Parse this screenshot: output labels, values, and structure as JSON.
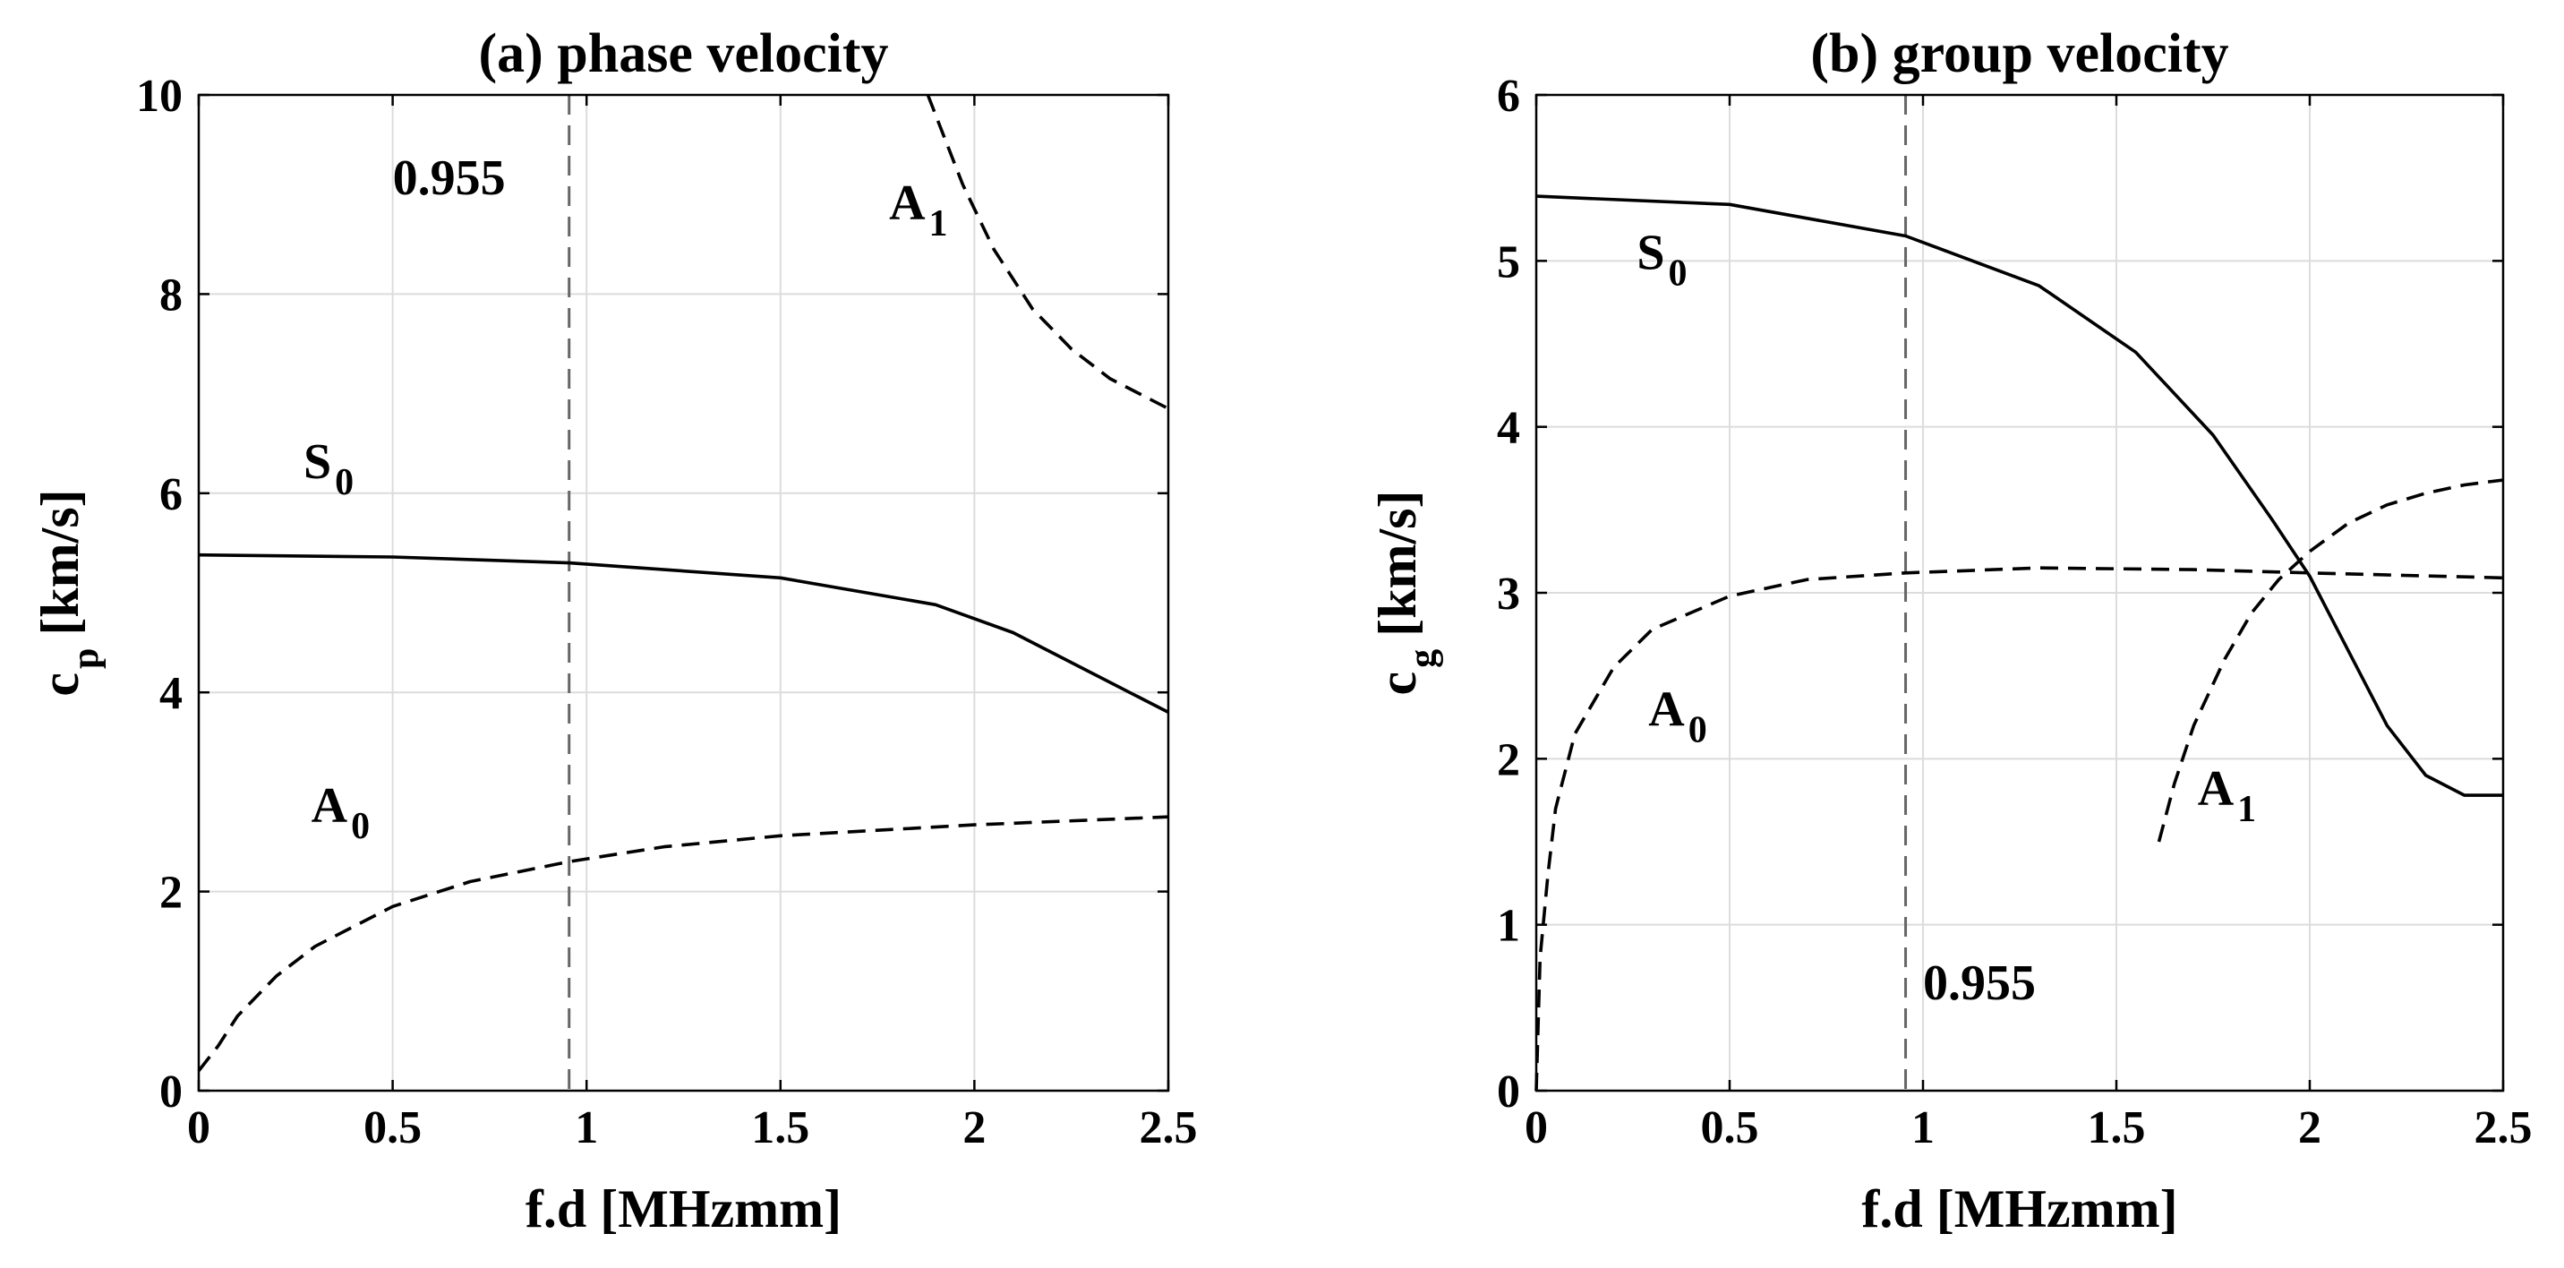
{
  "chart_data": [
    {
      "type": "line",
      "title": "(a) phase velocity",
      "xlabel": "f.d [MHzmm]",
      "ylabel": "c",
      "ylabel_sub": "p",
      "ylabel_unit": "[km/s]",
      "xlim": [
        0,
        2.5
      ],
      "ylim": [
        0,
        10
      ],
      "xticks": [
        0,
        0.5,
        1,
        1.5,
        2,
        2.5
      ],
      "xtick_labels": [
        "0",
        "0.5",
        "1",
        "1.5",
        "2",
        "2.5"
      ],
      "yticks": [
        0,
        2,
        4,
        6,
        8,
        10
      ],
      "ytick_labels": [
        "0",
        "2",
        "4",
        "6",
        "8",
        "10"
      ],
      "grid": true,
      "vline": {
        "x": 0.955,
        "label": "0.955",
        "label_pos": [
          0.5,
          9.0
        ]
      },
      "series": [
        {
          "name": "S0",
          "style": "solid",
          "x": [
            0,
            0.5,
            0.955,
            1.5,
            1.9,
            2.1,
            2.3,
            2.5
          ],
          "y": [
            5.38,
            5.36,
            5.3,
            5.15,
            4.88,
            4.6,
            4.2,
            3.8
          ]
        },
        {
          "name": "A0",
          "style": "dashed",
          "x": [
            0,
            0.05,
            0.1,
            0.2,
            0.3,
            0.5,
            0.7,
            0.955,
            1.2,
            1.5,
            2.0,
            2.5
          ],
          "y": [
            0.2,
            0.45,
            0.75,
            1.15,
            1.45,
            1.85,
            2.1,
            2.3,
            2.45,
            2.56,
            2.67,
            2.75
          ]
        },
        {
          "name": "A1",
          "style": "dashed",
          "x": [
            1.88,
            1.92,
            1.97,
            2.05,
            2.15,
            2.25,
            2.35,
            2.5
          ],
          "y": [
            10.0,
            9.6,
            9.1,
            8.45,
            7.85,
            7.45,
            7.15,
            6.85
          ]
        }
      ],
      "annotations": [
        {
          "text": "S",
          "sub": "0",
          "x": 0.27,
          "y": 6.15
        },
        {
          "text": "A",
          "sub": "0",
          "x": 0.29,
          "y": 2.7
        },
        {
          "text": "A",
          "sub": "1",
          "x": 1.78,
          "y": 8.75
        }
      ]
    },
    {
      "type": "line",
      "title": "(b) group velocity",
      "xlabel": "f.d [MHzmm]",
      "ylabel": "c",
      "ylabel_sub": "g",
      "ylabel_unit": "[km/s]",
      "xlim": [
        0,
        2.5
      ],
      "ylim": [
        0,
        6
      ],
      "xticks": [
        0,
        0.5,
        1,
        1.5,
        2,
        2.5
      ],
      "xtick_labels": [
        "0",
        "0.5",
        "1",
        "1.5",
        "2",
        "2.5"
      ],
      "yticks": [
        0,
        1,
        2,
        3,
        4,
        5,
        6
      ],
      "ytick_labels": [
        "0",
        "1",
        "2",
        "3",
        "4",
        "5",
        "6"
      ],
      "grid": true,
      "vline": {
        "x": 0.955,
        "label": "0.955",
        "label_pos": [
          1.0,
          0.55
        ]
      },
      "series": [
        {
          "name": "S0",
          "style": "solid",
          "x": [
            0,
            0.5,
            0.955,
            1.3,
            1.55,
            1.75,
            1.9,
            2.0,
            2.1,
            2.2,
            2.3,
            2.4,
            2.5
          ],
          "y": [
            5.39,
            5.34,
            5.15,
            4.85,
            4.45,
            3.95,
            3.45,
            3.1,
            2.65,
            2.2,
            1.9,
            1.78,
            1.78
          ]
        },
        {
          "name": "A0",
          "style": "dashed",
          "x": [
            0,
            0.01,
            0.03,
            0.05,
            0.1,
            0.2,
            0.3,
            0.5,
            0.7,
            0.955,
            1.3,
            1.7,
            2.0,
            2.5
          ],
          "y": [
            0.0,
            0.8,
            1.3,
            1.7,
            2.15,
            2.55,
            2.78,
            2.98,
            3.08,
            3.12,
            3.15,
            3.14,
            3.12,
            3.09
          ]
        },
        {
          "name": "A1",
          "style": "dashed",
          "x": [
            1.61,
            1.65,
            1.7,
            1.78,
            1.85,
            1.92,
            2.0,
            2.1,
            2.2,
            2.3,
            2.4,
            2.5
          ],
          "y": [
            1.5,
            1.85,
            2.2,
            2.6,
            2.88,
            3.08,
            3.25,
            3.42,
            3.53,
            3.6,
            3.65,
            3.68
          ]
        }
      ],
      "annotations": [
        {
          "text": "S",
          "sub": "0",
          "x": 0.26,
          "y": 4.95
        },
        {
          "text": "A",
          "sub": "0",
          "x": 0.29,
          "y": 2.2
        },
        {
          "text": "A",
          "sub": "1",
          "x": 1.71,
          "y": 1.72
        }
      ]
    }
  ]
}
